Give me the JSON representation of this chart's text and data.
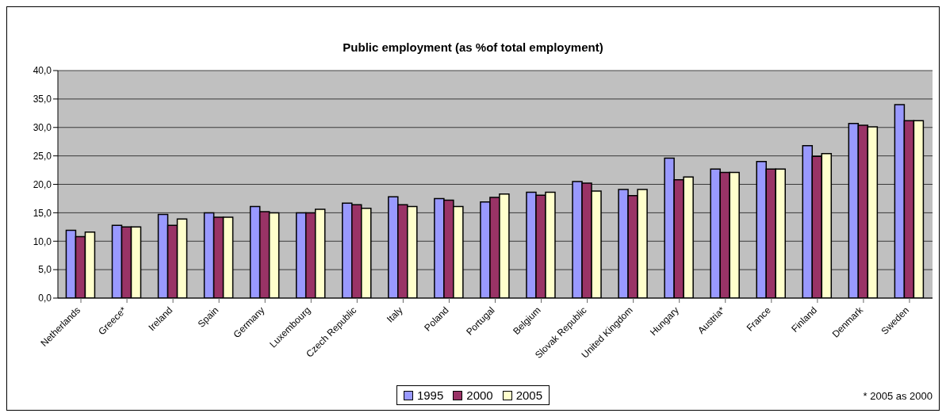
{
  "chart_data": {
    "type": "bar",
    "title": "Public employment (as %of total employment)",
    "categories": [
      "Netherlands",
      "Greece*",
      "Ireland",
      "Spain",
      "Germany",
      "Luxembourg",
      "Czech Republic",
      "Italy",
      "Poland",
      "Portugal",
      "Belgium",
      "Slovak Republic",
      "United Kingdom",
      "Hungary",
      "Austria*",
      "France",
      "Finland",
      "Denmark",
      "Sweden"
    ],
    "series": [
      {
        "name": "1995",
        "color": "#9999ff",
        "values": [
          11.9,
          12.8,
          14.7,
          15.0,
          16.1,
          15.0,
          16.7,
          17.8,
          17.5,
          16.9,
          18.6,
          20.5,
          19.1,
          24.6,
          22.7,
          24.0,
          26.8,
          30.7,
          34.0
        ]
      },
      {
        "name": "2000",
        "color": "#993366",
        "values": [
          10.8,
          12.5,
          12.8,
          14.2,
          15.2,
          15.0,
          16.4,
          16.4,
          17.2,
          17.7,
          18.1,
          20.2,
          18.0,
          20.8,
          22.1,
          22.7,
          24.9,
          30.4,
          31.2
        ]
      },
      {
        "name": "2005",
        "color": "#ffffcc",
        "values": [
          11.6,
          12.5,
          13.9,
          14.2,
          15.0,
          15.6,
          15.8,
          16.1,
          16.1,
          18.3,
          18.6,
          18.8,
          19.1,
          21.3,
          22.1,
          22.7,
          25.4,
          30.1,
          31.2
        ]
      }
    ],
    "ylim": [
      0,
      40
    ],
    "yticks": [
      {
        "value": 0,
        "label": "0,0"
      },
      {
        "value": 5,
        "label": "5,0"
      },
      {
        "value": 10,
        "label": "10,0"
      },
      {
        "value": 15,
        "label": "15,0"
      },
      {
        "value": 20,
        "label": "20,0"
      },
      {
        "value": 25,
        "label": "25,0"
      },
      {
        "value": 30,
        "label": "30,0"
      },
      {
        "value": 35,
        "label": "35,0"
      },
      {
        "value": 40,
        "label": "40,0"
      }
    ],
    "grid": "y",
    "legend": "bottom",
    "annotations": [
      "* 2005 as 2000"
    ]
  }
}
